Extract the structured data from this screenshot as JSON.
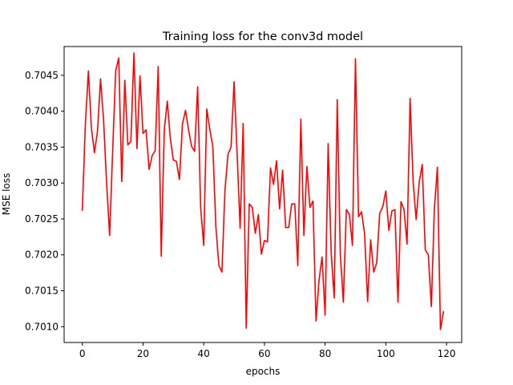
{
  "chart_data": {
    "type": "line",
    "title": "Training loss for the conv3d model",
    "xlabel": "epochs",
    "ylabel": "MSE loss",
    "xlim": [
      -6,
      125
    ],
    "ylim": [
      0.70078,
      0.7049
    ],
    "xticks": [
      0,
      20,
      40,
      60,
      80,
      100,
      120
    ],
    "yticks": [
      0.701,
      0.7015,
      0.702,
      0.7025,
      0.703,
      0.7035,
      0.704,
      0.7045
    ],
    "ytick_labels": [
      "0.7010",
      "0.7015",
      "0.7020",
      "0.7025",
      "0.7030",
      "0.7035",
      "0.7040",
      "0.7045"
    ],
    "grid": false,
    "series": [
      {
        "color": "#ff0000",
        "x": [
          0,
          1,
          2,
          3,
          4,
          5,
          6,
          7,
          8,
          9,
          10,
          11,
          12,
          13,
          14,
          15,
          16,
          17,
          18,
          19,
          20,
          21,
          22,
          23,
          24,
          25,
          26,
          27,
          28,
          29,
          30,
          31,
          32,
          33,
          34,
          35,
          36,
          37,
          38,
          39,
          40,
          41,
          42,
          43,
          44,
          45,
          46,
          47,
          48,
          49,
          50,
          51,
          52,
          53,
          54,
          55,
          56,
          57,
          58,
          59,
          60,
          61,
          62,
          63,
          64,
          65,
          66,
          67,
          68,
          69,
          70,
          71,
          72,
          73,
          74,
          75,
          76,
          77,
          78,
          79,
          80,
          81,
          82,
          83,
          84,
          85,
          86,
          87,
          88,
          89,
          90,
          91,
          92,
          93,
          94,
          95,
          96,
          97,
          98,
          99,
          100,
          101,
          102,
          103,
          104,
          105,
          106,
          107,
          108,
          109,
          110,
          111,
          112,
          113,
          114,
          115,
          116,
          117,
          118,
          119
        ],
        "values": [
          0.70262,
          0.70382,
          0.70456,
          0.70376,
          0.70342,
          0.70372,
          0.70445,
          0.70388,
          0.703,
          0.70227,
          0.70345,
          0.70456,
          0.70474,
          0.70302,
          0.70443,
          0.70353,
          0.70358,
          0.70481,
          0.70348,
          0.70449,
          0.70369,
          0.70374,
          0.70319,
          0.70338,
          0.70345,
          0.70462,
          0.70198,
          0.70374,
          0.70414,
          0.70362,
          0.70332,
          0.7033,
          0.70305,
          0.70382,
          0.70401,
          0.70374,
          0.70351,
          0.70344,
          0.70434,
          0.70265,
          0.70213,
          0.70403,
          0.70375,
          0.70351,
          0.7024,
          0.70185,
          0.70176,
          0.7029,
          0.7034,
          0.7035,
          0.70441,
          0.70341,
          0.70237,
          0.70383,
          0.70098,
          0.70271,
          0.70266,
          0.7023,
          0.70256,
          0.70201,
          0.7022,
          0.70218,
          0.70321,
          0.70298,
          0.70331,
          0.70264,
          0.70318,
          0.70238,
          0.70238,
          0.70271,
          0.70271,
          0.70185,
          0.70389,
          0.70227,
          0.70323,
          0.70266,
          0.70275,
          0.70108,
          0.70165,
          0.70197,
          0.70116,
          0.70355,
          0.70202,
          0.7014,
          0.70416,
          0.70202,
          0.70134,
          0.70263,
          0.70256,
          0.70213,
          0.70473,
          0.70253,
          0.7026,
          0.7023,
          0.70135,
          0.70221,
          0.70176,
          0.70189,
          0.70258,
          0.70267,
          0.70289,
          0.70234,
          0.70261,
          0.70263,
          0.70134,
          0.70274,
          0.70263,
          0.70215,
          0.70418,
          0.70302,
          0.70249,
          0.70301,
          0.70326,
          0.70207,
          0.702,
          0.70128,
          0.70264,
          0.70322,
          0.70096,
          0.70121
        ]
      }
    ]
  }
}
